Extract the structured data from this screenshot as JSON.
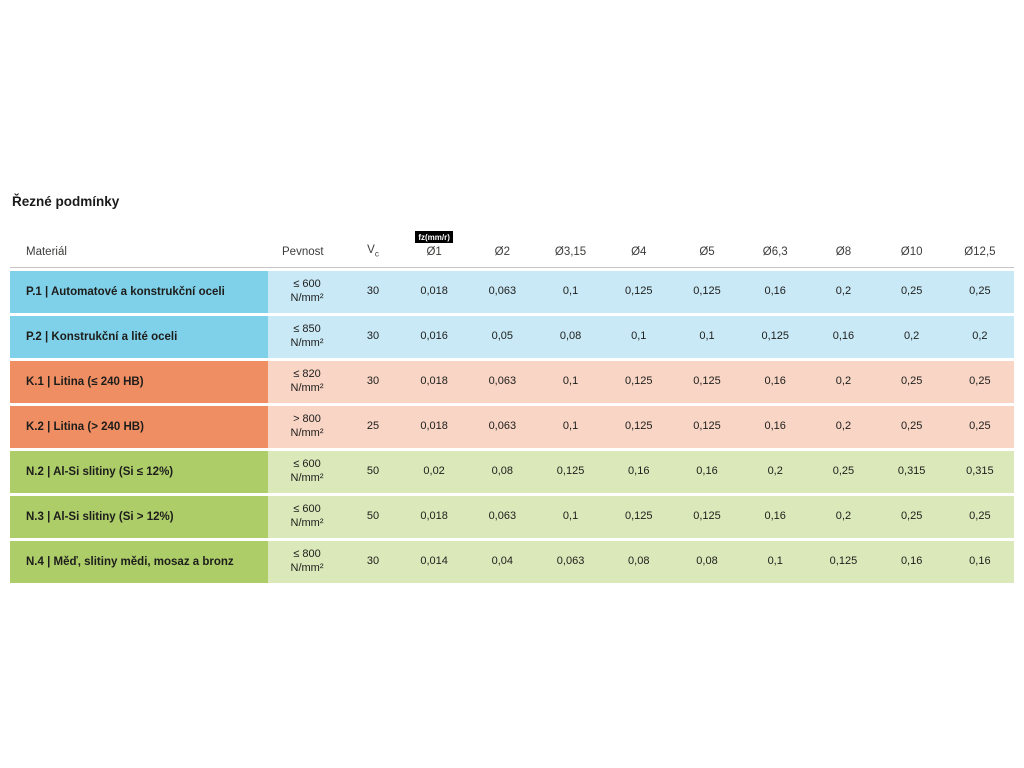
{
  "title": "Řezné podmínky",
  "table": {
    "headers": {
      "material": "Materiál",
      "strength": "Pevnost",
      "vc_base": "V",
      "vc_sub": "c",
      "fz_badge": "fz(mm/r)",
      "diameters": [
        "Ø1",
        "Ø2",
        "Ø3,15",
        "Ø4",
        "Ø5",
        "Ø6,3",
        "Ø8",
        "Ø10",
        "Ø12,5"
      ]
    },
    "groups": {
      "steel": {
        "label_bg": "#7fd0e9",
        "cell_bg": "#c9e9f6"
      },
      "cast_iron": {
        "label_bg": "#f08e63",
        "cell_bg": "#f8d5c5"
      },
      "non_ferrous": {
        "label_bg": "#adcd69",
        "cell_bg": "#dbe9ba"
      }
    },
    "rows": [
      {
        "group": "steel",
        "material": "P.1 | Automatové a konstrukční oceli",
        "strength": "≤ 600",
        "unit": "N/mm²",
        "vc": "30",
        "fz": [
          "0,018",
          "0,063",
          "0,1",
          "0,125",
          "0,125",
          "0,16",
          "0,2",
          "0,25",
          "0,25"
        ]
      },
      {
        "group": "steel",
        "material": "P.2 | Konstrukční a lité oceli",
        "strength": "≤ 850",
        "unit": "N/mm²",
        "vc": "30",
        "fz": [
          "0,016",
          "0,05",
          "0,08",
          "0,1",
          "0,1",
          "0,125",
          "0,16",
          "0,2",
          "0,2"
        ]
      },
      {
        "group": "cast_iron",
        "material": "K.1 | Litina (≤ 240 HB)",
        "strength": "≤ 820",
        "unit": "N/mm²",
        "vc": "30",
        "fz": [
          "0,018",
          "0,063",
          "0,1",
          "0,125",
          "0,125",
          "0,16",
          "0,2",
          "0,25",
          "0,25"
        ]
      },
      {
        "group": "cast_iron",
        "material": "K.2 | Litina (> 240 HB)",
        "strength": "> 800",
        "unit": "N/mm²",
        "vc": "25",
        "fz": [
          "0,018",
          "0,063",
          "0,1",
          "0,125",
          "0,125",
          "0,16",
          "0,2",
          "0,25",
          "0,25"
        ]
      },
      {
        "group": "non_ferrous",
        "material": "N.2 | Al-Si slitiny (Si ≤ 12%)",
        "strength": "≤ 600",
        "unit": "N/mm²",
        "vc": "50",
        "fz": [
          "0,02",
          "0,08",
          "0,125",
          "0,16",
          "0,16",
          "0,2",
          "0,25",
          "0,315",
          "0,315"
        ]
      },
      {
        "group": "non_ferrous",
        "material": "N.3 | Al-Si slitiny (Si > 12%)",
        "strength": "≤ 600",
        "unit": "N/mm²",
        "vc": "50",
        "fz": [
          "0,018",
          "0,063",
          "0,1",
          "0,125",
          "0,125",
          "0,16",
          "0,2",
          "0,25",
          "0,25"
        ]
      },
      {
        "group": "non_ferrous",
        "material": "N.4 | Měď, slitiny mědi, mosaz a bronz",
        "strength": "≤ 800",
        "unit": "N/mm²",
        "vc": "30",
        "fz": [
          "0,014",
          "0,04",
          "0,063",
          "0,08",
          "0,08",
          "0,1",
          "0,125",
          "0,16",
          "0,16"
        ]
      }
    ]
  }
}
